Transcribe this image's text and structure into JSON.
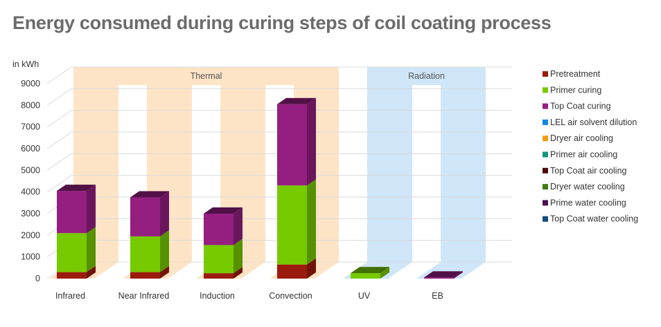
{
  "chart_data": {
    "type": "bar",
    "stacked": true,
    "three_d": true,
    "title": "Energy consumed during curing steps of coil coating process",
    "ylabel": "in kWh",
    "xlabel": "",
    "ylim": [
      0,
      9000
    ],
    "yticks": [
      0,
      1000,
      2000,
      3000,
      4000,
      5000,
      6000,
      7000,
      8000,
      9000
    ],
    "grid": true,
    "legend_position": "right",
    "categories": [
      "Infrared",
      "Near Infrared",
      "Induction",
      "Convection",
      "UV",
      "EB"
    ],
    "bands": [
      {
        "label": "Thermal",
        "categories": [
          "Infrared",
          "Near Infrared",
          "Induction",
          "Convection"
        ],
        "color": "#fde4c6"
      },
      {
        "label": "Radiation",
        "categories": [
          "UV",
          "EB"
        ],
        "color": "#cfe6f8"
      }
    ],
    "series": [
      {
        "name": "Pretreatment",
        "color": "#9b1c0c",
        "values": [
          300,
          300,
          250,
          650,
          0,
          0
        ]
      },
      {
        "name": "Primer curing",
        "color": "#77c900",
        "values": [
          1800,
          1650,
          1300,
          3650,
          250,
          0
        ]
      },
      {
        "name": "Top Coat curing",
        "color": "#941f80",
        "values": [
          1950,
          1800,
          1450,
          3750,
          0,
          50
        ]
      },
      {
        "name": "LEL air solvent dilution",
        "color": "#1485e0",
        "values": [
          0,
          0,
          0,
          0,
          0,
          0
        ]
      },
      {
        "name": "Dryer air cooling",
        "color": "#f39c12",
        "values": [
          0,
          0,
          0,
          0,
          0,
          0
        ]
      },
      {
        "name": "Primer air cooling",
        "color": "#12967a",
        "values": [
          0,
          0,
          0,
          0,
          0,
          0
        ]
      },
      {
        "name": "Top Coat air cooling",
        "color": "#4d0c0a",
        "values": [
          0,
          0,
          0,
          0,
          0,
          0
        ]
      },
      {
        "name": "Dryer water cooling",
        "color": "#3f7a12",
        "values": [
          0,
          0,
          0,
          0,
          0,
          0
        ]
      },
      {
        "name": "Prime water cooling",
        "color": "#4a1050",
        "values": [
          0,
          0,
          0,
          0,
          0,
          0
        ]
      },
      {
        "name": "Top Coat water cooling",
        "color": "#134d80",
        "values": [
          0,
          0,
          0,
          0,
          0,
          0
        ]
      }
    ]
  }
}
